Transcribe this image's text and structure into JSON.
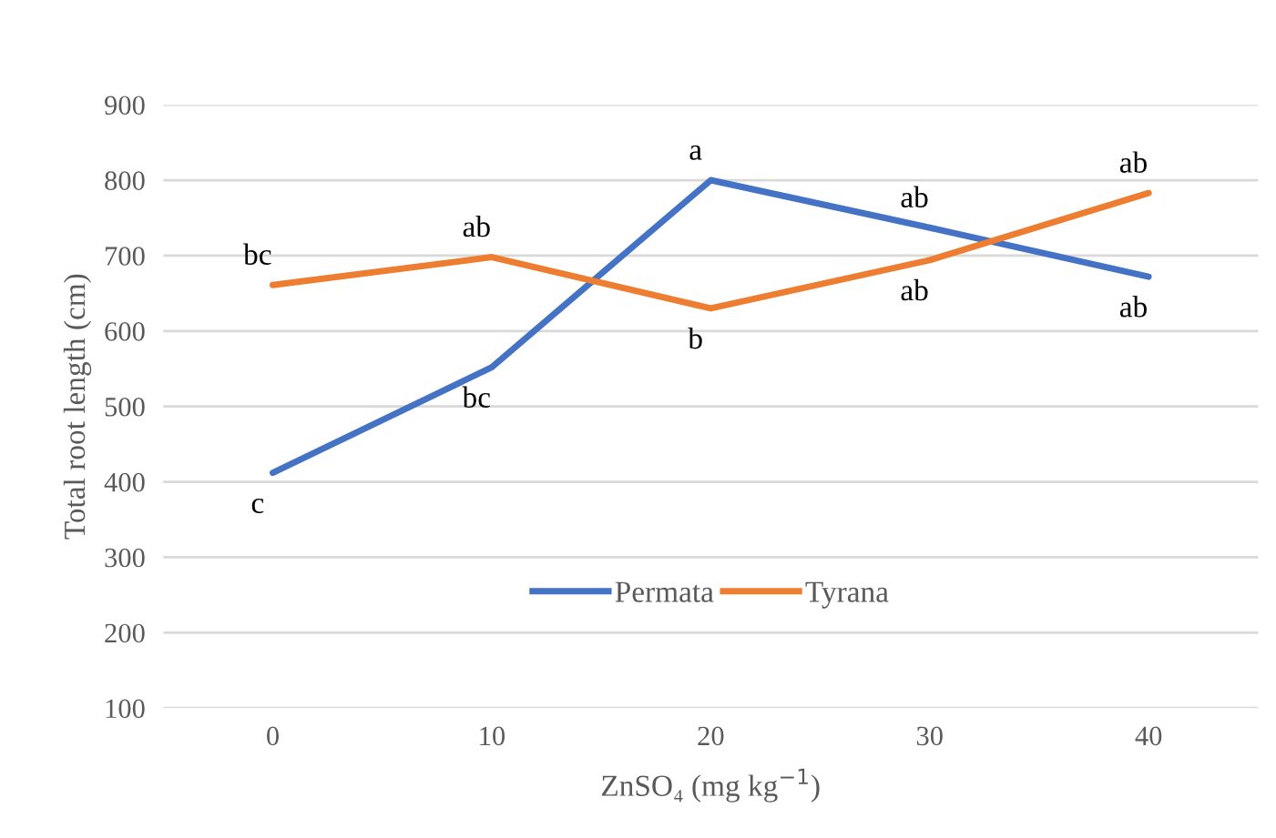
{
  "chart_data": {
    "type": "line",
    "xlabel": "ZnSO₄ (mg kg$^{−1}$)",
    "ylabel": "Total root length (cm)",
    "categories": [
      "0",
      "10",
      "20",
      "30",
      "40"
    ],
    "series": [
      {
        "name": "Permata",
        "color": "#4472c4",
        "values": [
          412,
          552,
          800,
          737,
          672
        ]
      },
      {
        "name": "Tyrana",
        "color": "#ed7d31",
        "values": [
          661,
          698,
          630,
          694,
          783
        ]
      }
    ],
    "ylim": [
      100,
      900
    ],
    "yticks": [
      100,
      200,
      300,
      400,
      500,
      600,
      700,
      800,
      900
    ],
    "grid": "y",
    "legend": "bottom",
    "marker": "none",
    "line_style": "solid",
    "annotations": [
      {
        "text": "c",
        "x": "0",
        "y": 412
      },
      {
        "text": "bc",
        "x": "10",
        "y": 552
      },
      {
        "text": "a",
        "x": "20",
        "y": 800
      },
      {
        "text": "ab",
        "x": "30",
        "y": 737
      },
      {
        "text": "ab",
        "x": "40",
        "y": 672
      },
      {
        "text": "bc",
        "x": "0",
        "y": 661
      },
      {
        "text": "ab",
        "x": "10",
        "y": 698
      },
      {
        "text": "b",
        "x": "20",
        "y": 630
      },
      {
        "text": "ab",
        "x": "30",
        "y": 694
      },
      {
        "text": "ab",
        "x": "40",
        "y": 783
      }
    ]
  }
}
